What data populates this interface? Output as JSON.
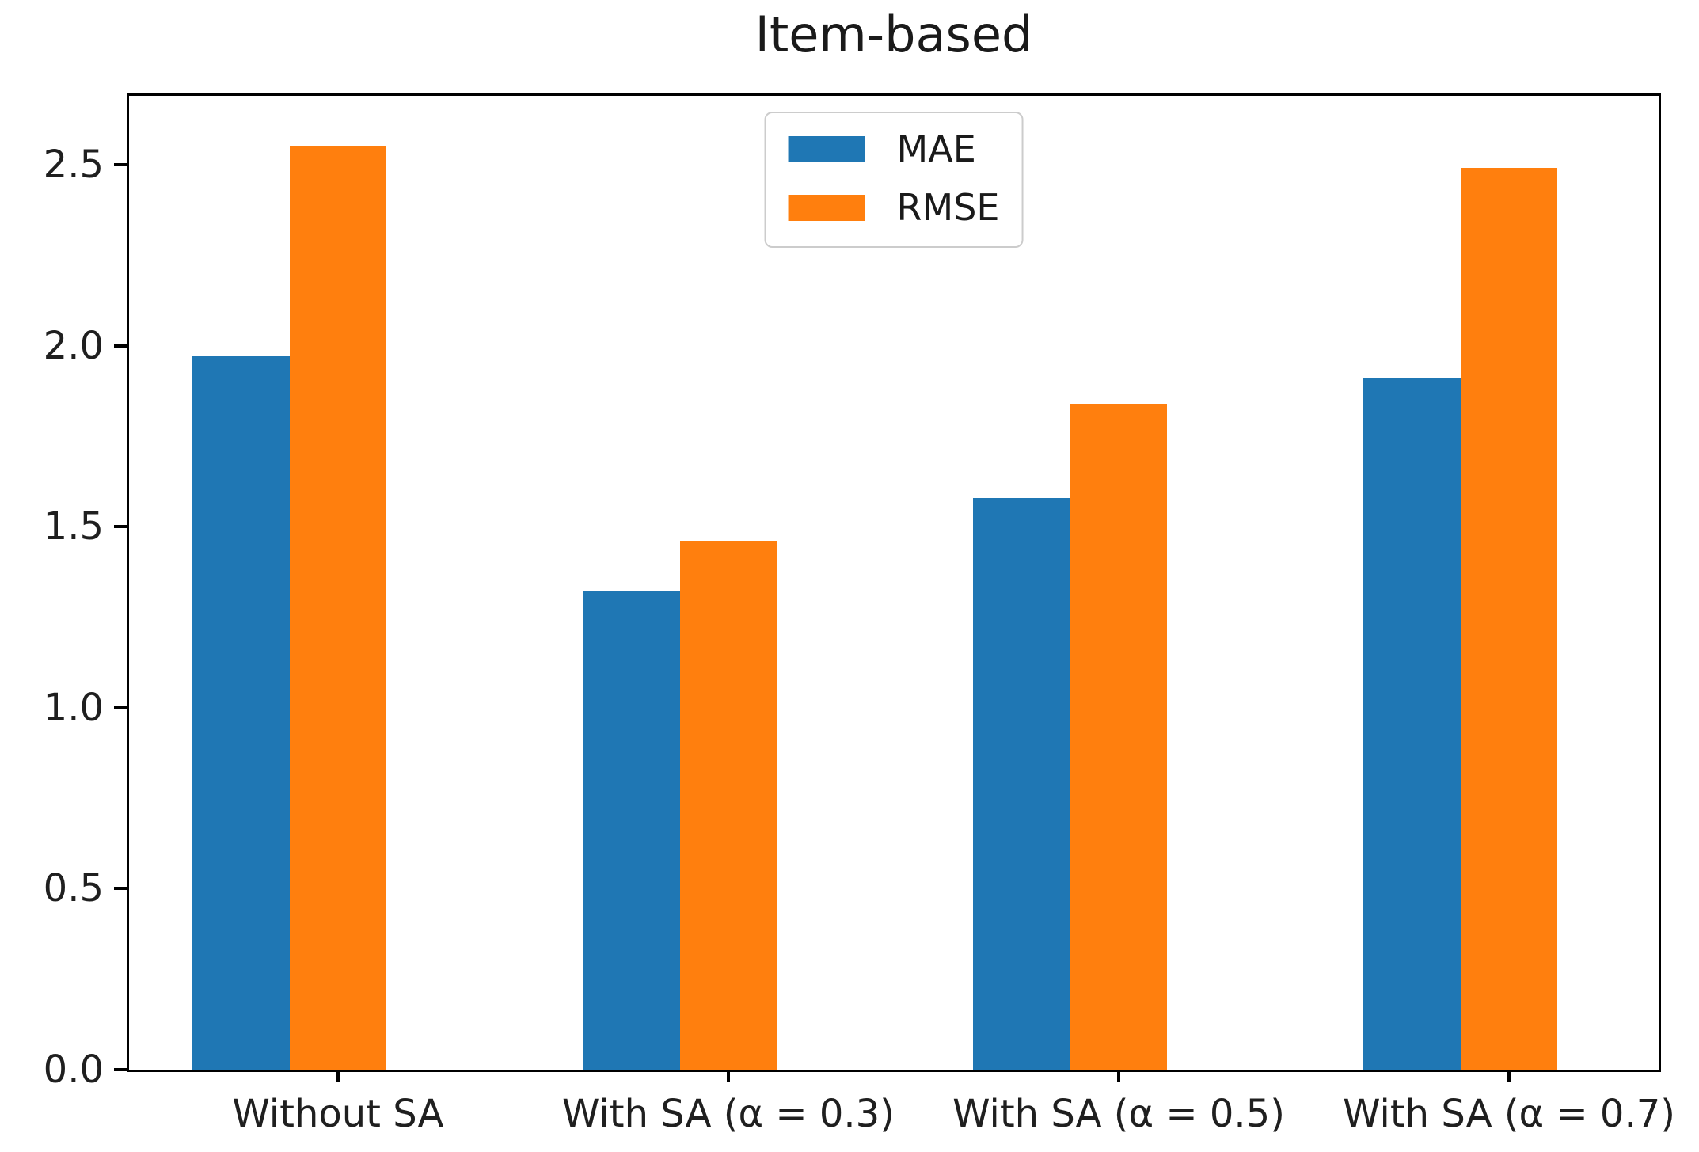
{
  "figure": {
    "background": "#ffffff"
  },
  "chart_data": {
    "type": "bar",
    "title": "Item-based",
    "categories": [
      "Without SA",
      "With SA (α = 0.3)",
      "With SA (α = 0.5)",
      "With SA (α = 0.7)"
    ],
    "series": [
      {
        "name": "MAE",
        "color": "#1f77b4",
        "values": [
          1.97,
          1.32,
          1.58,
          1.91
        ]
      },
      {
        "name": "RMSE",
        "color": "#ff7f0e",
        "values": [
          2.55,
          1.46,
          1.84,
          2.49
        ]
      }
    ],
    "xlabel": "",
    "ylabel": "",
    "ylim": [
      0,
      2.69
    ],
    "yticks": [
      0.0,
      0.5,
      1.0,
      1.5,
      2.0,
      2.5
    ],
    "ytick_decimals": 1,
    "grid": false,
    "legend_position": "upper center",
    "axis_color": "#000000",
    "text_color": "#1f1f1f"
  }
}
